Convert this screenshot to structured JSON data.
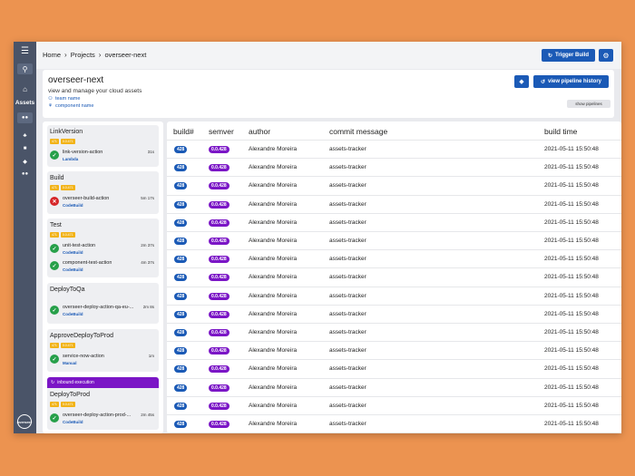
{
  "nav": {
    "menu_icon": "hamburger-icon",
    "search_icon": "search-icon",
    "home_icon": "home-icon",
    "assets_label": "Assets",
    "logo_text": "overseer"
  },
  "breadcrumbs": [
    "Home",
    "Projects",
    "overseer-next"
  ],
  "toolbar": {
    "trigger_label": "Trigger Build"
  },
  "project": {
    "title": "overseer-next",
    "subtitle": "view and manage your cloud assets",
    "team": "team name",
    "component": "component name",
    "history_label": "view pipeline history",
    "show_pipelines_label": "show pipelines"
  },
  "stages": [
    {
      "name": "LinkVersion",
      "tags": [
        "471",
        "0.0.471"
      ],
      "actions": [
        {
          "name": "link-version-action",
          "type": "Lambda",
          "duration": "31s",
          "status": "ok"
        }
      ]
    },
    {
      "name": "Build",
      "tags": [
        "471",
        "0.0.471"
      ],
      "actions": [
        {
          "name": "overseer-build-action",
          "type": "CodeBuild",
          "duration": "5m 17s",
          "status": "fail"
        }
      ]
    },
    {
      "name": "Test",
      "tags": [
        "471",
        "0.0.471"
      ],
      "actions": [
        {
          "name": "unit-test-action",
          "type": "CodeBuild",
          "duration": "2m 37s",
          "status": "ok"
        },
        {
          "name": "component-test-action",
          "type": "CodeBuild",
          "duration": "4m 37s",
          "status": "ok"
        }
      ]
    },
    {
      "name": "DeployToQa",
      "tags": [],
      "actions": [
        {
          "name": "overseer-deploy-action-qa-eu-...",
          "type": "CodeBuild",
          "duration": "2m 8s",
          "status": "ok"
        }
      ]
    },
    {
      "name": "ApproveDeployToProd",
      "tags": [
        "471",
        "0.0.471"
      ],
      "actions": [
        {
          "name": "service-now-action",
          "type": "Manual",
          "duration": "1m",
          "status": "ok"
        }
      ]
    },
    {
      "name": "DeployToProd",
      "tags": [
        "471",
        "0.0.471"
      ],
      "actions": [
        {
          "name": "overseer-deploy-action-prod-...",
          "type": "CodeBuild",
          "duration": "2m 45s",
          "status": "ok"
        }
      ]
    }
  ],
  "inbound_label": "inbound execution",
  "table": {
    "headers": [
      "build#",
      "semver",
      "author",
      "commit message",
      "build time"
    ],
    "rows": [
      [
        "428",
        "0.0.428",
        "Alexandre Moreira",
        "assets-tracker",
        "2021-05-11 15:50:48"
      ],
      [
        "428",
        "0.0.428",
        "Alexandre Moreira",
        "assets-tracker",
        "2021-05-11 15:50:48"
      ],
      [
        "428",
        "0.0.428",
        "Alexandre Moreira",
        "assets-tracker",
        "2021-05-11 15:50:48"
      ],
      [
        "428",
        "0.0.428",
        "Alexandre Moreira",
        "assets-tracker",
        "2021-05-11 15:50:48"
      ],
      [
        "428",
        "0.0.428",
        "Alexandre Moreira",
        "assets-tracker",
        "2021-05-11 15:50:48"
      ],
      [
        "428",
        "0.0.428",
        "Alexandre Moreira",
        "assets-tracker",
        "2021-05-11 15:50:48"
      ],
      [
        "428",
        "0.0.428",
        "Alexandre Moreira",
        "assets-tracker",
        "2021-05-11 15:50:48"
      ],
      [
        "428",
        "0.0.428",
        "Alexandre Moreira",
        "assets-tracker",
        "2021-05-11 15:50:48"
      ],
      [
        "428",
        "0.0.428",
        "Alexandre Moreira",
        "assets-tracker",
        "2021-05-11 15:50:48"
      ],
      [
        "428",
        "0.0.428",
        "Alexandre Moreira",
        "assets-tracker",
        "2021-05-11 15:50:48"
      ],
      [
        "428",
        "0.0.428",
        "Alexandre Moreira",
        "assets-tracker",
        "2021-05-11 15:50:48"
      ],
      [
        "428",
        "0.0.428",
        "Alexandre Moreira",
        "assets-tracker",
        "2021-05-11 15:50:48"
      ],
      [
        "428",
        "0.0.428",
        "Alexandre Moreira",
        "assets-tracker",
        "2021-05-11 15:50:48"
      ],
      [
        "428",
        "0.0.428",
        "Alexandre Moreira",
        "assets-tracker",
        "2021-05-11 15:50:48"
      ],
      [
        "428",
        "0.0.428",
        "Alexandre Moreira",
        "assets-tracker",
        "2021-05-11 15:50:48"
      ],
      [
        "428",
        "0.0.428",
        "Alexandre Moreira",
        "assets-tracker",
        "2021-05-11 15:50:48"
      ],
      [
        "428",
        "0.0.428",
        "Alexandre Moreira",
        "assets-tracker",
        "2021-05-11 15:50:48"
      ]
    ]
  },
  "colors": {
    "accent": "#1b5ab6",
    "semver": "#7b16c6",
    "tag": "#f2b318",
    "ok": "#27a04a",
    "fail": "#d6272a",
    "rail": "#4a5468"
  }
}
